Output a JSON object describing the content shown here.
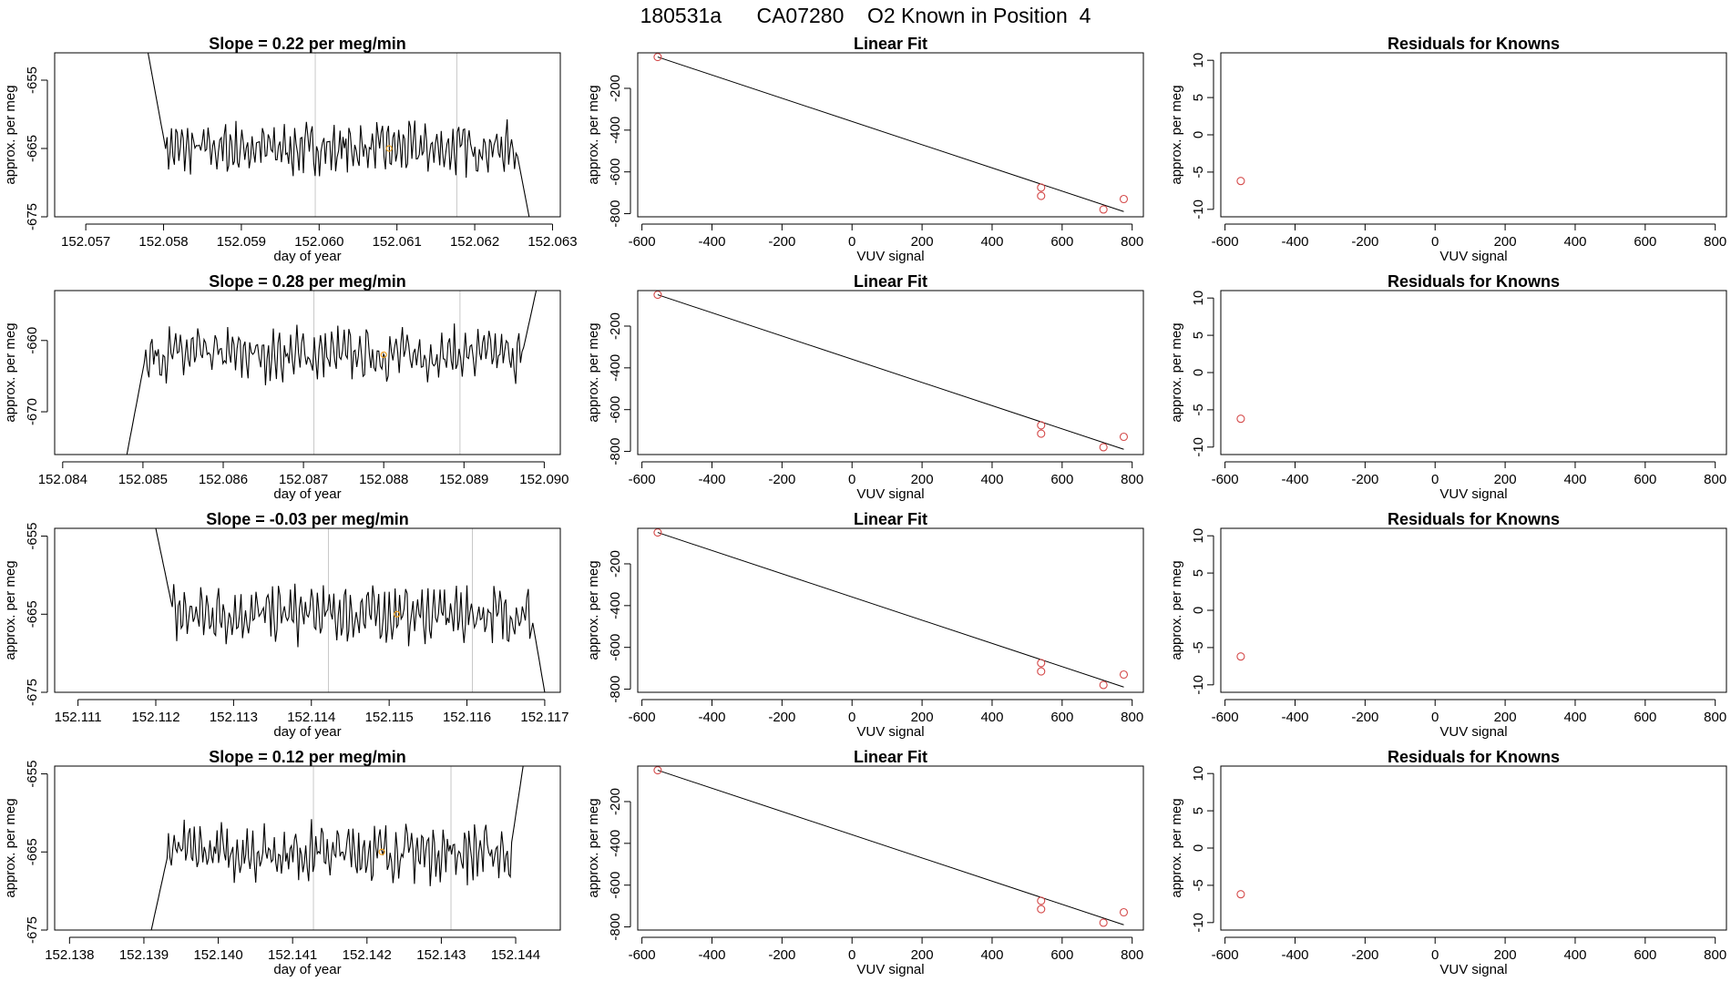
{
  "title": {
    "run_id": "180531a",
    "cylinder": "CA07280",
    "label": "O2 Known in Position",
    "position": "4"
  },
  "colors": {
    "line": "#000000",
    "frame": "#000000",
    "grid_line": "#c8c8c8",
    "point_known": "#d44a4a",
    "point_highlight": "#f0a020"
  },
  "chart_data": [
    {
      "type": "line",
      "row": 1,
      "panel": "time-series",
      "title_prefix": "Slope = ",
      "slope": "0.22",
      "title_suffix": " per meg/min",
      "xlabel": "day of year",
      "ylabel": "approx. per meg",
      "xlim": [
        152.0566,
        152.0631
      ],
      "ylim": [
        -675,
        -651
      ],
      "xticks": [
        152.057,
        152.058,
        152.059,
        152.06,
        152.061,
        152.062,
        152.063
      ],
      "xtick_labels": [
        "152.057",
        "152.058",
        "152.059",
        "152.060",
        "152.061",
        "152.062",
        "152.063"
      ],
      "yticks": [
        -655,
        -665,
        -675
      ],
      "ytick_labels": [
        "-655",
        "-665",
        "-675"
      ],
      "vlines": [
        152.05995,
        152.06177
      ],
      "x_start": 152.0578,
      "x_end": 152.0627,
      "y_start": -651,
      "y_end": -675,
      "baseline": -665,
      "highlight": {
        "x": 152.0609,
        "y": -665
      }
    },
    {
      "type": "scatter",
      "row": 1,
      "panel": "linear-fit",
      "title": "Linear Fit",
      "xlabel": "VUV signal",
      "ylabel": "approx. per meg",
      "xlim": [
        -612,
        832
      ],
      "ylim": [
        -815,
        -30
      ],
      "xticks": [
        -600,
        -400,
        -200,
        0,
        200,
        400,
        600,
        800
      ],
      "xtick_labels": [
        "-600",
        "-400",
        "-200",
        "0",
        "200",
        "400",
        "600",
        "800"
      ],
      "yticks": [
        -200,
        -400,
        -600,
        -800
      ],
      "ytick_labels": [
        "-200",
        "-400",
        "-600",
        "-800"
      ],
      "points": [
        {
          "x": -555,
          "y": -50
        },
        {
          "x": 540,
          "y": -675
        },
        {
          "x": 540,
          "y": -715
        },
        {
          "x": 718,
          "y": -780
        },
        {
          "x": 776,
          "y": -730
        }
      ],
      "fit_line": [
        {
          "x": -555,
          "y": -50
        },
        {
          "x": 776,
          "y": -790
        }
      ]
    },
    {
      "type": "scatter",
      "row": 1,
      "panel": "residuals",
      "title": "Residuals for Knowns",
      "xlabel": "VUV signal",
      "ylabel": "approx. per meg",
      "xlim": [
        -612,
        832
      ],
      "ylim": [
        -11,
        11
      ],
      "xticks": [
        -600,
        -400,
        -200,
        0,
        200,
        400,
        600,
        800
      ],
      "xtick_labels": [
        "-600",
        "-400",
        "-200",
        "0",
        "200",
        "400",
        "600",
        "800"
      ],
      "yticks": [
        10,
        5,
        0,
        -5,
        -10
      ],
      "ytick_labels": [
        "10",
        "5",
        "0",
        "-5",
        "-10"
      ],
      "points": [
        {
          "x": -555,
          "y": -6.2
        }
      ]
    },
    {
      "type": "line",
      "row": 2,
      "panel": "time-series",
      "title_prefix": "Slope = ",
      "slope": "0.28",
      "title_suffix": " per meg/min",
      "xlabel": "day of year",
      "ylabel": "approx. per meg",
      "xlim": [
        152.0839,
        152.0902
      ],
      "ylim": [
        -676,
        -653
      ],
      "xticks": [
        152.084,
        152.085,
        152.086,
        152.087,
        152.088,
        152.089,
        152.09
      ],
      "xtick_labels": [
        "152.084",
        "152.085",
        "152.086",
        "152.087",
        "152.088",
        "152.089",
        "152.090"
      ],
      "yticks": [
        -660,
        -670
      ],
      "ytick_labels": [
        "-660",
        "-670"
      ],
      "vlines": [
        152.08713,
        152.08895
      ],
      "x_start": 152.0848,
      "x_end": 152.0899,
      "y_start": -676,
      "y_end": -653,
      "baseline": -662,
      "highlight": {
        "x": 152.088,
        "y": -662
      }
    },
    {
      "type": "scatter",
      "row": 2,
      "panel": "linear-fit",
      "title": "Linear Fit",
      "xlabel": "VUV signal",
      "ylabel": "approx. per meg",
      "xlim": [
        -612,
        832
      ],
      "ylim": [
        -815,
        -30
      ],
      "xticks": [
        -600,
        -400,
        -200,
        0,
        200,
        400,
        600,
        800
      ],
      "xtick_labels": [
        "-600",
        "-400",
        "-200",
        "0",
        "200",
        "400",
        "600",
        "800"
      ],
      "yticks": [
        -200,
        -400,
        -600,
        -800
      ],
      "ytick_labels": [
        "-200",
        "-400",
        "-600",
        "-800"
      ],
      "points": [
        {
          "x": -555,
          "y": -50
        },
        {
          "x": 540,
          "y": -675
        },
        {
          "x": 540,
          "y": -715
        },
        {
          "x": 718,
          "y": -780
        },
        {
          "x": 776,
          "y": -730
        }
      ],
      "fit_line": [
        {
          "x": -555,
          "y": -50
        },
        {
          "x": 776,
          "y": -790
        }
      ]
    },
    {
      "type": "scatter",
      "row": 2,
      "panel": "residuals",
      "title": "Residuals for Knowns",
      "xlabel": "VUV signal",
      "ylabel": "approx. per meg",
      "xlim": [
        -612,
        832
      ],
      "ylim": [
        -11,
        11
      ],
      "xticks": [
        -600,
        -400,
        -200,
        0,
        200,
        400,
        600,
        800
      ],
      "xtick_labels": [
        "-600",
        "-400",
        "-200",
        "0",
        "200",
        "400",
        "600",
        "800"
      ],
      "yticks": [
        10,
        5,
        0,
        -5,
        -10
      ],
      "ytick_labels": [
        "10",
        "5",
        "0",
        "-5",
        "-10"
      ],
      "points": [
        {
          "x": -555,
          "y": -6.2
        }
      ]
    },
    {
      "type": "line",
      "row": 3,
      "panel": "time-series",
      "title_prefix": "Slope = ",
      "slope": "-0.03",
      "title_suffix": " per meg/min",
      "xlabel": "day of year",
      "ylabel": "approx. per meg",
      "xlim": [
        152.1107,
        152.1172
      ],
      "ylim": [
        -675,
        -654
      ],
      "xticks": [
        152.111,
        152.112,
        152.113,
        152.114,
        152.115,
        152.116,
        152.117
      ],
      "xtick_labels": [
        "152.111",
        "152.112",
        "152.113",
        "152.114",
        "152.115",
        "152.116",
        "152.117"
      ],
      "yticks": [
        -655,
        -665,
        -675
      ],
      "ytick_labels": [
        "-655",
        "-665",
        "-675"
      ],
      "vlines": [
        152.11422,
        152.11607
      ],
      "x_start": 152.112,
      "x_end": 152.117,
      "y_start": -654,
      "y_end": -675,
      "baseline": -665,
      "highlight": {
        "x": 152.1151,
        "y": -665
      }
    },
    {
      "type": "scatter",
      "row": 3,
      "panel": "linear-fit",
      "title": "Linear Fit",
      "xlabel": "VUV signal",
      "ylabel": "approx. per meg",
      "xlim": [
        -612,
        832
      ],
      "ylim": [
        -815,
        -30
      ],
      "xticks": [
        -600,
        -400,
        -200,
        0,
        200,
        400,
        600,
        800
      ],
      "xtick_labels": [
        "-600",
        "-400",
        "-200",
        "0",
        "200",
        "400",
        "600",
        "800"
      ],
      "yticks": [
        -200,
        -400,
        -600,
        -800
      ],
      "ytick_labels": [
        "-200",
        "-400",
        "-600",
        "-800"
      ],
      "points": [
        {
          "x": -555,
          "y": -50
        },
        {
          "x": 540,
          "y": -675
        },
        {
          "x": 540,
          "y": -715
        },
        {
          "x": 718,
          "y": -780
        },
        {
          "x": 776,
          "y": -730
        }
      ],
      "fit_line": [
        {
          "x": -555,
          "y": -50
        },
        {
          "x": 776,
          "y": -790
        }
      ]
    },
    {
      "type": "scatter",
      "row": 3,
      "panel": "residuals",
      "title": "Residuals for Knowns",
      "xlabel": "VUV signal",
      "ylabel": "approx. per meg",
      "xlim": [
        -612,
        832
      ],
      "ylim": [
        -11,
        11
      ],
      "xticks": [
        -600,
        -400,
        -200,
        0,
        200,
        400,
        600,
        800
      ],
      "xtick_labels": [
        "-600",
        "-400",
        "-200",
        "0",
        "200",
        "400",
        "600",
        "800"
      ],
      "yticks": [
        10,
        5,
        0,
        -5,
        -10
      ],
      "ytick_labels": [
        "10",
        "5",
        "0",
        "-5",
        "-10"
      ],
      "points": [
        {
          "x": -555,
          "y": -6.2
        }
      ]
    },
    {
      "type": "line",
      "row": 4,
      "panel": "time-series",
      "title_prefix": "Slope = ",
      "slope": "0.12",
      "title_suffix": " per meg/min",
      "xlabel": "day of year",
      "ylabel": "approx. per meg",
      "xlim": [
        152.1378,
        152.1446
      ],
      "ylim": [
        -675,
        -654
      ],
      "xticks": [
        152.138,
        152.139,
        152.14,
        152.141,
        152.142,
        152.143,
        152.144
      ],
      "xtick_labels": [
        "152.138",
        "152.139",
        "152.140",
        "152.141",
        "152.142",
        "152.143",
        "152.144"
      ],
      "yticks": [
        -655,
        -665,
        -675
      ],
      "ytick_labels": [
        "-655",
        "-665",
        "-675"
      ],
      "vlines": [
        152.14128,
        152.14313
      ],
      "x_start": 152.1391,
      "x_end": 152.1441,
      "y_start": -675,
      "y_end": -654,
      "baseline": -665,
      "highlight": {
        "x": 152.1422,
        "y": -665
      }
    },
    {
      "type": "scatter",
      "row": 4,
      "panel": "linear-fit",
      "title": "Linear Fit",
      "xlabel": "VUV signal",
      "ylabel": "approx. per meg",
      "xlim": [
        -612,
        832
      ],
      "ylim": [
        -815,
        -30
      ],
      "xticks": [
        -600,
        -400,
        -200,
        0,
        200,
        400,
        600,
        800
      ],
      "xtick_labels": [
        "-600",
        "-400",
        "-200",
        "0",
        "200",
        "400",
        "600",
        "800"
      ],
      "yticks": [
        -200,
        -400,
        -600,
        -800
      ],
      "ytick_labels": [
        "-200",
        "-400",
        "-600",
        "-800"
      ],
      "points": [
        {
          "x": -555,
          "y": -50
        },
        {
          "x": 540,
          "y": -675
        },
        {
          "x": 540,
          "y": -715
        },
        {
          "x": 718,
          "y": -780
        },
        {
          "x": 776,
          "y": -730
        }
      ],
      "fit_line": [
        {
          "x": -555,
          "y": -50
        },
        {
          "x": 776,
          "y": -790
        }
      ]
    },
    {
      "type": "scatter",
      "row": 4,
      "panel": "residuals",
      "title": "Residuals for Knowns",
      "xlabel": "VUV signal",
      "ylabel": "approx. per meg",
      "xlim": [
        -612,
        832
      ],
      "ylim": [
        -11,
        11
      ],
      "xticks": [
        -600,
        -400,
        -200,
        0,
        200,
        400,
        600,
        800
      ],
      "xtick_labels": [
        "-600",
        "-400",
        "-200",
        "0",
        "200",
        "400",
        "600",
        "800"
      ],
      "yticks": [
        10,
        5,
        0,
        -5,
        -10
      ],
      "ytick_labels": [
        "10",
        "5",
        "0",
        "-5",
        "-10"
      ],
      "points": [
        {
          "x": -555,
          "y": -6.2
        }
      ]
    }
  ]
}
